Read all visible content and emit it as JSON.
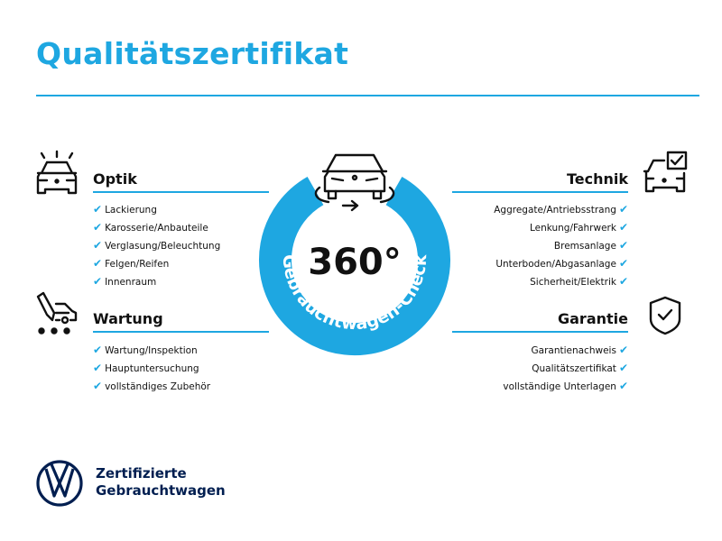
{
  "title": "Qualitätszertifikat",
  "colors": {
    "accent": "#1ea7e1",
    "brand": "#001e50"
  },
  "center": {
    "big": "360°",
    "arc_text": "Gebrauchtwagen-Check",
    "icon": "car-rotate-icon"
  },
  "sections": {
    "optik": {
      "heading": "Optik",
      "icon": "car-lights-icon",
      "items": [
        "Lackierung",
        "Karosserie/Anbauteile",
        "Verglasung/Beleuchtung",
        "Felgen/Reifen",
        "Innenraum"
      ]
    },
    "wartung": {
      "heading": "Wartung",
      "icon": "service-car-icon",
      "items": [
        "Wartung/Inspektion",
        "Hauptuntersuchung",
        "vollständiges Zubehör"
      ]
    },
    "technik": {
      "heading": "Technik",
      "icon": "car-checkbox-icon",
      "items": [
        "Aggregate/Antriebsstrang",
        "Lenkung/Fahrwerk",
        "Bremsanlage",
        "Unterboden/Abgasanlage",
        "Sicherheit/Elektrik"
      ]
    },
    "garantie": {
      "heading": "Garantie",
      "icon": "shield-check-icon",
      "items": [
        "Garantienachweis",
        "Qualitätszertifikat",
        "vollständige Unterlagen"
      ]
    }
  },
  "check_mark": "✔",
  "brand": {
    "line1": "Zertifizierte",
    "line2": "Gebrauchtwagen",
    "logo": "vw-logo"
  }
}
